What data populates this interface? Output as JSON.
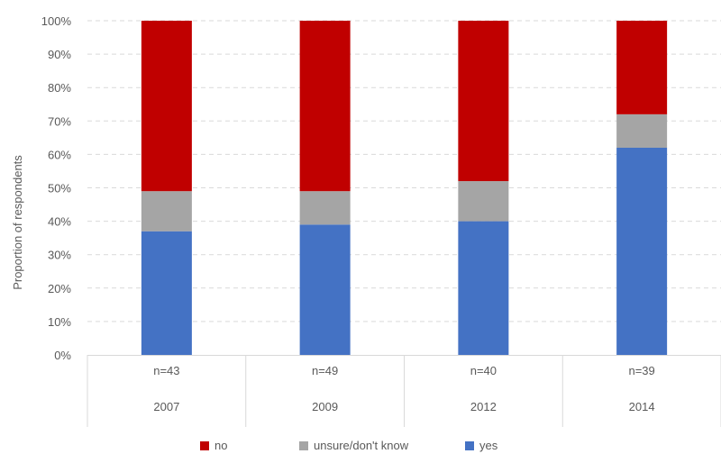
{
  "chart_data": {
    "type": "bar",
    "stacked": true,
    "percent_stacked": true,
    "ylabel": "Proportion of respondents",
    "ylim": [
      0,
      100
    ],
    "y_ticks": [
      "0%",
      "10%",
      "20%",
      "30%",
      "40%",
      "50%",
      "60%",
      "70%",
      "80%",
      "90%",
      "100%"
    ],
    "grid": true,
    "categories": [
      "2007",
      "2009",
      "2012",
      "2014"
    ],
    "sample_labels": [
      "n=43",
      "n=49",
      "n=40",
      "n=39"
    ],
    "series": [
      {
        "name": "yes",
        "color": "#4472c4",
        "values": [
          37,
          39,
          40,
          62
        ]
      },
      {
        "name": "unsure/don't know",
        "color": "#a5a5a5",
        "values": [
          12,
          10,
          12,
          10
        ]
      },
      {
        "name": "no",
        "color": "#c00000",
        "values": [
          51,
          51,
          48,
          28
        ]
      }
    ],
    "legend": {
      "position": "bottom",
      "order": [
        "no",
        "unsure/don't know",
        "yes"
      ]
    }
  }
}
